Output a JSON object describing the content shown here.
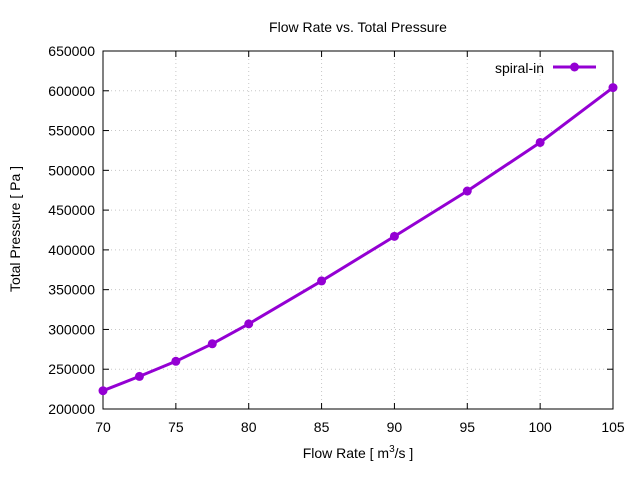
{
  "chart_data": {
    "type": "line",
    "title": "Flow Rate vs. Total Pressure",
    "xlabel_prefix": "Flow Rate [ m",
    "xlabel_sup": "3",
    "xlabel_suffix": "/s ]",
    "ylabel": "Total Pressure [ Pa ]",
    "xlim": [
      70,
      105
    ],
    "ylim": [
      200000,
      650000
    ],
    "xticks": [
      70,
      75,
      80,
      85,
      90,
      95,
      100,
      105
    ],
    "yticks": [
      200000,
      250000,
      300000,
      350000,
      400000,
      450000,
      500000,
      550000,
      600000,
      650000
    ],
    "grid": true,
    "legend_position": "top-right",
    "series": [
      {
        "name": "spiral-in",
        "color": "#9400d3",
        "x": [
          70,
          72.5,
          75,
          77.5,
          80,
          85,
          90,
          95,
          100,
          105
        ],
        "y": [
          223000,
          241000,
          260000,
          282000,
          307000,
          361000,
          417000,
          474000,
          535000,
          604000
        ]
      }
    ]
  }
}
